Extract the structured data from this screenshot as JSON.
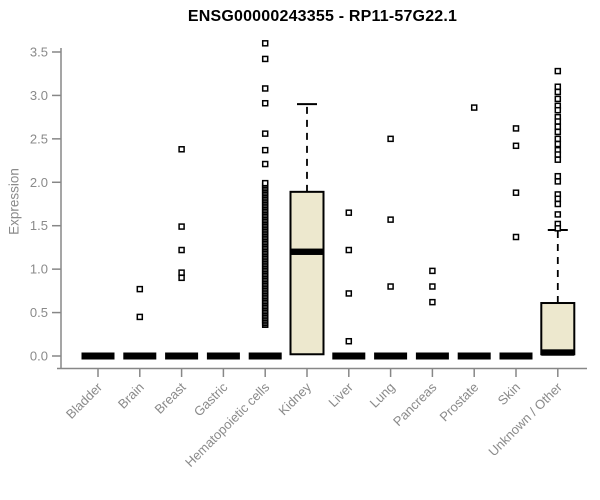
{
  "chart_data": {
    "type": "boxplot",
    "title": "ENSG00000243355 - RP11-57G22.1",
    "ylabel": "Expression",
    "xlabel": "",
    "ylim": [
      0,
      3.5
    ],
    "y_ticks": [
      "0.0",
      "0.5",
      "1.0",
      "1.5",
      "2.0",
      "2.5",
      "3.0",
      "3.5"
    ],
    "grid": "off",
    "legend": "none",
    "colors": {
      "box_fill": "#EDE8CE",
      "box_stroke": "#000000",
      "axis": "#878787",
      "tick_label": "#8a8a8a",
      "marker": "#000000"
    },
    "categories": [
      "Bladder",
      "Brain",
      "Breast",
      "Gastric",
      "Hematopoietic cells",
      "Kidney",
      "Liver",
      "Lung",
      "Pancreas",
      "Prostate",
      "Skin",
      "Unknown / Other"
    ],
    "series": [
      {
        "name": "Bladder",
        "flat_zero": true,
        "outliers": []
      },
      {
        "name": "Brain",
        "flat_zero": true,
        "outliers": [
          0.77,
          0.45
        ]
      },
      {
        "name": "Breast",
        "flat_zero": true,
        "outliers": [
          2.38,
          1.49,
          1.22,
          0.96,
          0.9
        ]
      },
      {
        "name": "Gastric",
        "flat_zero": true,
        "outliers": []
      },
      {
        "name": "Hematopoietic cells",
        "flat_zero": true,
        "outliers": [
          3.6,
          3.42,
          3.08,
          2.91,
          2.56,
          2.37,
          2.21
        ],
        "dense_strip": {
          "min": 0.36,
          "max": 1.99,
          "count": 85
        }
      },
      {
        "name": "Kidney",
        "box": {
          "q1": 0.02,
          "median": 1.2,
          "q3": 1.89,
          "whisker_high": 2.9
        },
        "outliers": []
      },
      {
        "name": "Liver",
        "flat_zero": true,
        "outliers": [
          1.65,
          1.22,
          0.72,
          0.17
        ]
      },
      {
        "name": "Lung",
        "flat_zero": true,
        "outliers": [
          2.5,
          1.57,
          0.8
        ]
      },
      {
        "name": "Pancreas",
        "flat_zero": true,
        "outliers": [
          0.98,
          0.8,
          0.62
        ]
      },
      {
        "name": "Prostate",
        "flat_zero": true,
        "outliers": [
          2.86
        ]
      },
      {
        "name": "Skin",
        "flat_zero": true,
        "outliers": [
          2.62,
          2.42,
          1.88,
          1.37
        ]
      },
      {
        "name": "Unknown / Other",
        "box": {
          "q1": 0.02,
          "median": 0.04,
          "q3": 0.61,
          "whisker_high": 1.45
        },
        "outliers": [
          3.28,
          3.1,
          3.04,
          2.96,
          2.88,
          2.83,
          2.75,
          2.7,
          2.64,
          2.58,
          2.5,
          2.44,
          2.37,
          2.32,
          2.26,
          2.07,
          2.01,
          1.86,
          1.81,
          1.75,
          1.63,
          1.52,
          1.47
        ]
      }
    ]
  }
}
